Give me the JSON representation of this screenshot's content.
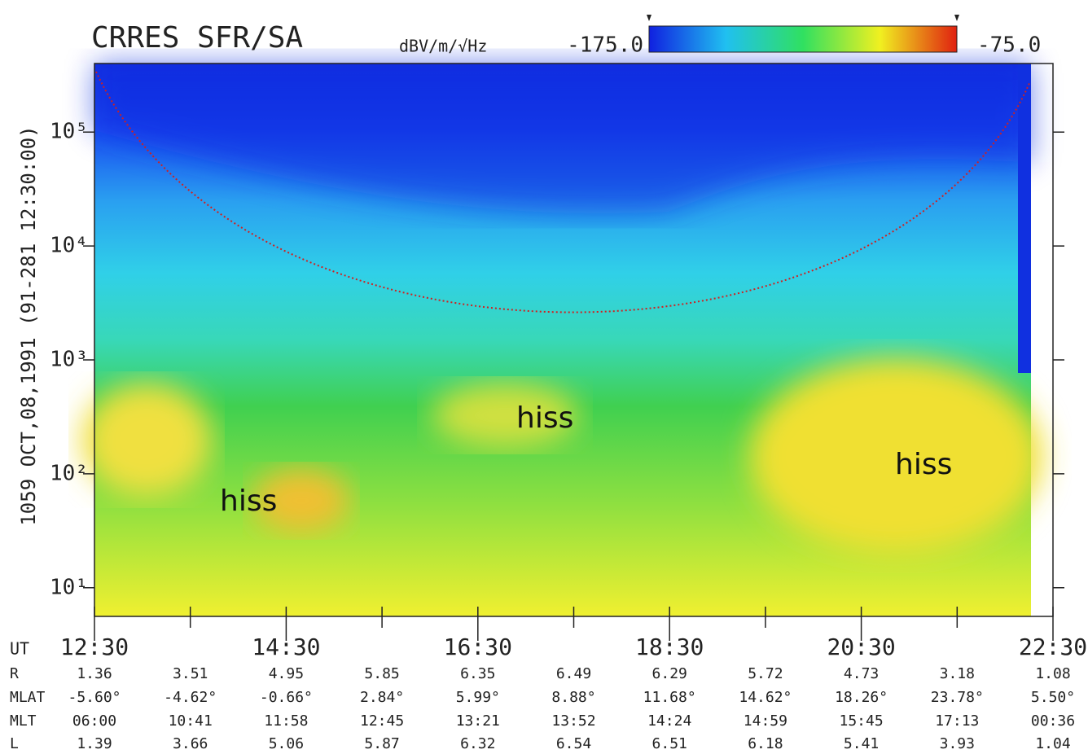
{
  "chart_data": {
    "type": "spectrogram",
    "title": "CRRES SFR/SA",
    "y_label": "1059  OCT,08,1991  (91-281 12:30:00)",
    "colorbar": {
      "unit": "dBV/m/√Hz",
      "ticks": [
        {
          "value": -175,
          "label": "-175.0"
        },
        {
          "value": -75,
          "label": "-75.0"
        }
      ]
    },
    "ylog": true,
    "ylim": [
      5.6,
      400000
    ],
    "yticks": [
      {
        "value": 10,
        "label": "10¹"
      },
      {
        "value": 100,
        "label": "10²"
      },
      {
        "value": 1000,
        "label": "10³"
      },
      {
        "value": 10000,
        "label": "10⁴"
      },
      {
        "value": 100000,
        "label": "10⁵"
      }
    ],
    "x_label": "UT",
    "categories": [
      "12:30",
      null,
      "14:30",
      null,
      "16:30",
      null,
      "18:30",
      null,
      "20:30",
      null,
      "22:30"
    ],
    "ephemeris": [
      {
        "name": "R",
        "values": [
          1.36,
          3.51,
          4.95,
          5.85,
          6.35,
          6.49,
          6.29,
          5.72,
          4.73,
          3.18,
          1.08
        ]
      },
      {
        "name": "MLAT",
        "values": [
          "-5.60°",
          "-4.62°",
          "-0.66°",
          "2.84°",
          "5.99°",
          "8.88°",
          "11.68°",
          "14.62°",
          "18.26°",
          "23.78°",
          "5.50°"
        ]
      },
      {
        "name": "MLT",
        "values": [
          "06:00",
          "10:41",
          "11:58",
          "12:45",
          "13:21",
          "13:52",
          "14:24",
          "14:59",
          "15:45",
          "17:13",
          "00:36"
        ]
      },
      {
        "name": "L",
        "values": [
          1.39,
          3.66,
          5.06,
          5.87,
          6.32,
          6.54,
          6.51,
          6.18,
          5.41,
          3.93,
          1.04
        ]
      }
    ],
    "annotations": [
      "hiss",
      "hiss",
      "hiss"
    ]
  }
}
